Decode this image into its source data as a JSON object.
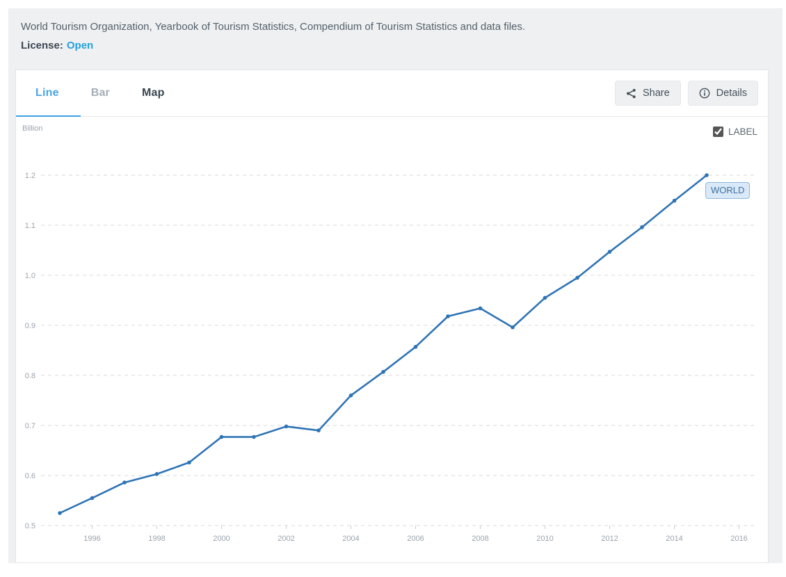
{
  "header": {
    "source_text": "World Tourism Organization, Yearbook of Tourism Statistics, Compendium of Tourism Statistics and data files.",
    "license_label": "License:",
    "license_value": "Open"
  },
  "toolbar": {
    "tabs": [
      {
        "label": "Line",
        "state": "active"
      },
      {
        "label": "Bar",
        "state": "muted"
      },
      {
        "label": "Map",
        "state": "normal"
      }
    ],
    "share_label": "Share",
    "details_label": "Details"
  },
  "chart_header": {
    "unit_label": "Billion",
    "label_checkbox": {
      "label": "LABEL",
      "checked": true
    }
  },
  "chart_data": {
    "type": "line",
    "title": "",
    "xlabel": "",
    "ylabel": "Billion",
    "xlim": [
      1994.5,
      2016.6
    ],
    "ylim": [
      0.5,
      1.2
    ],
    "x_ticks": [
      1996,
      1998,
      2000,
      2002,
      2004,
      2006,
      2008,
      2010,
      2012,
      2014,
      2016
    ],
    "y_ticks": [
      0.5,
      0.6,
      0.7,
      0.8,
      0.9,
      1.0,
      1.1,
      1.2
    ],
    "grid": "horizontal-dashed",
    "legend_position": "end-of-line",
    "end_label": "WORLD",
    "line_color": "#2e74b5",
    "grid_color": "#d8dadd",
    "axis_text_color": "#9aa3ad",
    "series": [
      {
        "name": "WORLD",
        "x": [
          1995,
          1996,
          1997,
          1998,
          1999,
          2000,
          2001,
          2002,
          2003,
          2004,
          2005,
          2006,
          2007,
          2008,
          2009,
          2010,
          2011,
          2012,
          2013,
          2014,
          2015
        ],
        "values": [
          0.525,
          0.555,
          0.586,
          0.603,
          0.626,
          0.677,
          0.677,
          0.698,
          0.69,
          0.76,
          0.807,
          0.857,
          0.918,
          0.934,
          0.896,
          0.955,
          0.995,
          1.047,
          1.096,
          1.149,
          1.2
        ]
      }
    ]
  }
}
